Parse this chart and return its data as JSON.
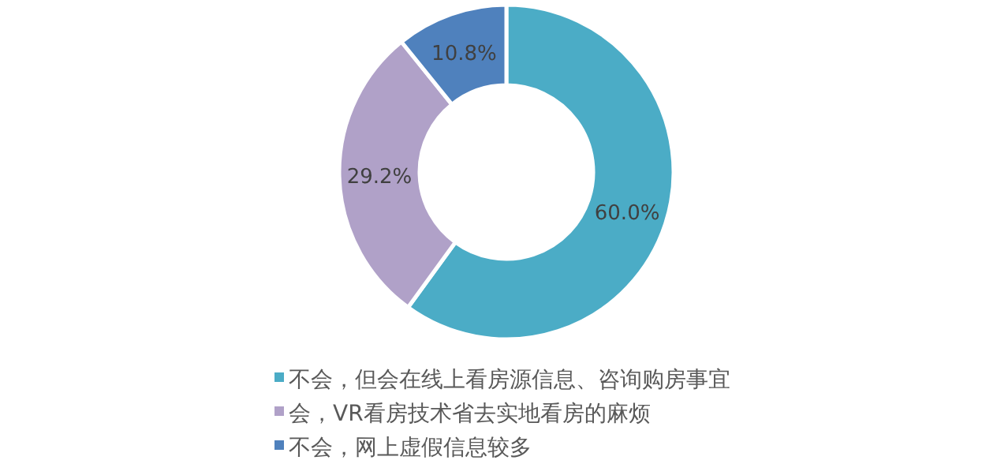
{
  "chart_data": {
    "type": "donut",
    "categories": [
      "不会，但会在线上看房源信息、咨询购房事宜",
      "会，VR看房技术省去实地看房的麻烦",
      "不会，网上虚假信息较多"
    ],
    "values": [
      60.0,
      29.2,
      10.8
    ],
    "colors": [
      "#4bacc6",
      "#b0a1c8",
      "#4f81bd"
    ],
    "value_labels": [
      "60.0%",
      "29.2%",
      "10.8%"
    ],
    "legend": "bottom"
  }
}
